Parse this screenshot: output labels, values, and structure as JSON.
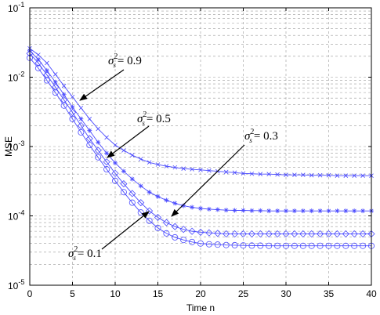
{
  "chart_data": {
    "type": "line",
    "xlabel": "Time n",
    "ylabel": "MSE",
    "xlim": [
      0,
      40
    ],
    "ylim": [
      1e-05,
      0.1
    ],
    "yscale": "log",
    "x_ticks": [
      "0",
      "5",
      "10",
      "15",
      "20",
      "25",
      "30",
      "35",
      "40"
    ],
    "y_ticks": [
      {
        "base": "10",
        "exp": "-5"
      },
      {
        "base": "10",
        "exp": "-4"
      },
      {
        "base": "10",
        "exp": "-3"
      },
      {
        "base": "10",
        "exp": "-2"
      },
      {
        "base": "10",
        "exp": "-1"
      }
    ],
    "grid": true,
    "line_color": "#4a4aff",
    "x": [
      0,
      1,
      2,
      3,
      4,
      5,
      6,
      7,
      8,
      9,
      10,
      11,
      12,
      13,
      14,
      15,
      16,
      17,
      18,
      19,
      20,
      21,
      22,
      23,
      24,
      25,
      26,
      27,
      28,
      29,
      30,
      31,
      32,
      33,
      34,
      35,
      36,
      37,
      38,
      39,
      40
    ],
    "series": [
      {
        "marker": "x",
        "label": {
          "symbol": "σ",
          "sup": "2",
          "sub": "s",
          "text": "= 0.9"
        },
        "values": [
          0.026,
          0.021,
          0.016,
          0.011,
          0.0075,
          0.0052,
          0.0036,
          0.0025,
          0.0018,
          0.00135,
          0.00105,
          0.00088,
          0.00075,
          0.00066,
          0.00059,
          0.00055,
          0.00052,
          0.0005,
          0.00048,
          0.00047,
          0.00046,
          0.00045,
          0.00044,
          0.00043,
          0.00042,
          0.00041,
          0.000405,
          0.0004,
          0.0004,
          0.000395,
          0.00039,
          0.00039,
          0.00039,
          0.000385,
          0.000385,
          0.000385,
          0.00038,
          0.00038,
          0.00038,
          0.00038,
          0.00038
        ]
      },
      {
        "marker": "star",
        "label": {
          "symbol": "σ",
          "sup": "2",
          "sub": "s",
          "text": "= 0.5"
        },
        "values": [
          0.024,
          0.018,
          0.0125,
          0.0085,
          0.0056,
          0.0037,
          0.0025,
          0.0017,
          0.00115,
          0.0008,
          0.00058,
          0.00044,
          0.00034,
          0.00027,
          0.00022,
          0.00019,
          0.000168,
          0.000152,
          0.00014,
          0.000133,
          0.000128,
          0.000125,
          0.000123,
          0.000121,
          0.00012,
          0.00012,
          0.000119,
          0.000119,
          0.000118,
          0.000118,
          0.000118,
          0.000118,
          0.000118,
          0.000118,
          0.000118,
          0.000118,
          0.000118,
          0.000118,
          0.000118,
          0.000118,
          0.000118
        ]
      },
      {
        "marker": "diamond",
        "label": {
          "symbol": "σ",
          "sup": "2",
          "sub": "s",
          "text": "= 0.3"
        },
        "values": [
          0.022,
          0.016,
          0.0108,
          0.0072,
          0.0047,
          0.0031,
          0.002,
          0.0013,
          0.00088,
          0.0006,
          0.00041,
          0.00029,
          0.00021,
          0.000155,
          0.000118,
          9.5e-05,
          8e-05,
          7e-05,
          6.4e-05,
          6e-05,
          5.8e-05,
          5.7e-05,
          5.6e-05,
          5.5e-05,
          5.5e-05,
          5.5e-05,
          5.5e-05,
          5.5e-05,
          5.5e-05,
          5.5e-05,
          5.5e-05,
          5.5e-05,
          5.5e-05,
          5.5e-05,
          5.5e-05,
          5.5e-05,
          5.5e-05,
          5.5e-05,
          5.5e-05,
          5.5e-05,
          5.5e-05
        ]
      },
      {
        "marker": "circle",
        "label": {
          "symbol": "σ",
          "sup": "2",
          "sub": "s",
          "text": "= 0.1"
        },
        "values": [
          0.019,
          0.0135,
          0.009,
          0.006,
          0.0039,
          0.0025,
          0.0016,
          0.00105,
          0.0007,
          0.00047,
          0.00032,
          0.00022,
          0.000155,
          0.000112,
          8.5e-05,
          6.7e-05,
          5.6e-05,
          4.9e-05,
          4.5e-05,
          4.2e-05,
          4e-05,
          3.9e-05,
          3.85e-05,
          3.8e-05,
          3.78e-05,
          3.75e-05,
          3.73e-05,
          3.72e-05,
          3.7e-05,
          3.7e-05,
          3.7e-05,
          3.7e-05,
          3.7e-05,
          3.7e-05,
          3.7e-05,
          3.7e-05,
          3.7e-05,
          3.7e-05,
          3.7e-05,
          3.7e-05,
          3.7e-05
        ]
      }
    ]
  }
}
